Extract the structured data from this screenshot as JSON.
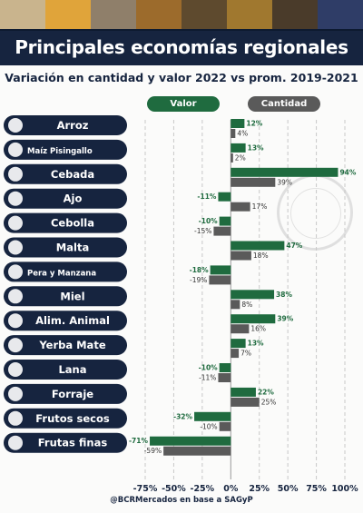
{
  "header": {
    "title": "Principales economías regionales",
    "subtitle": "Variación en cantidad y valor 2022 vs prom. 2019-2021"
  },
  "legend": {
    "valor_label": "Valor",
    "cantidad_label": "Cantidad"
  },
  "footer": {
    "credit": "@BCRMercados en base a SAGyP"
  },
  "colors": {
    "navy": "#16243f",
    "valor": "#1f6b3f",
    "cantidad": "#5a5a5a"
  },
  "chart_data": {
    "type": "bar",
    "orientation": "horizontal",
    "categories": [
      "Arroz",
      "Maíz Pisingallo",
      "Cebada",
      "Ajo",
      "Cebolla",
      "Malta",
      "Pera y Manzana",
      "Miel",
      "Alim. Animal",
      "Yerba Mate",
      "Lana",
      "Forraje",
      "Frutos secos",
      "Frutas finas"
    ],
    "category_icons": [
      "rice-icon",
      "popcorn-icon",
      "barley-icon",
      "garlic-icon",
      "onion-icon",
      "malt-icon",
      "fruit-icon",
      "honey-icon",
      "cow-icon",
      "mate-icon",
      "wool-icon",
      "hay-icon",
      "nuts-icon",
      "berries-icon"
    ],
    "series": [
      {
        "name": "Valor",
        "values": [
          12,
          13,
          94,
          -11,
          -10,
          47,
          -18,
          38,
          39,
          13,
          -10,
          22,
          -32,
          -71
        ],
        "labels": [
          "12%",
          "13%",
          "94%",
          "-11%",
          "-10%",
          "47%",
          "-18%",
          "38%",
          "39%",
          "13%",
          "-10%",
          "22%",
          "-32%",
          "-71%"
        ]
      },
      {
        "name": "Cantidad",
        "values": [
          4,
          2,
          39,
          17,
          -15,
          18,
          -19,
          8,
          16,
          7,
          -11,
          25,
          -10,
          -59
        ],
        "labels": [
          "4%",
          "2%",
          "39%",
          "17%",
          "-15%",
          "18%",
          "-19%",
          "8%",
          "16%",
          "7%",
          "-11%",
          "25%",
          "-10%",
          "-59%"
        ]
      }
    ],
    "xlim": [
      -75,
      100
    ],
    "xticks": [
      -75,
      -50,
      -25,
      0,
      25,
      50,
      75,
      100
    ],
    "xtick_labels": [
      "-75%",
      "-50%",
      "-25%",
      "0%",
      "25%",
      "50%",
      "75%",
      "100%"
    ],
    "grid": true,
    "legend_position": "top"
  }
}
